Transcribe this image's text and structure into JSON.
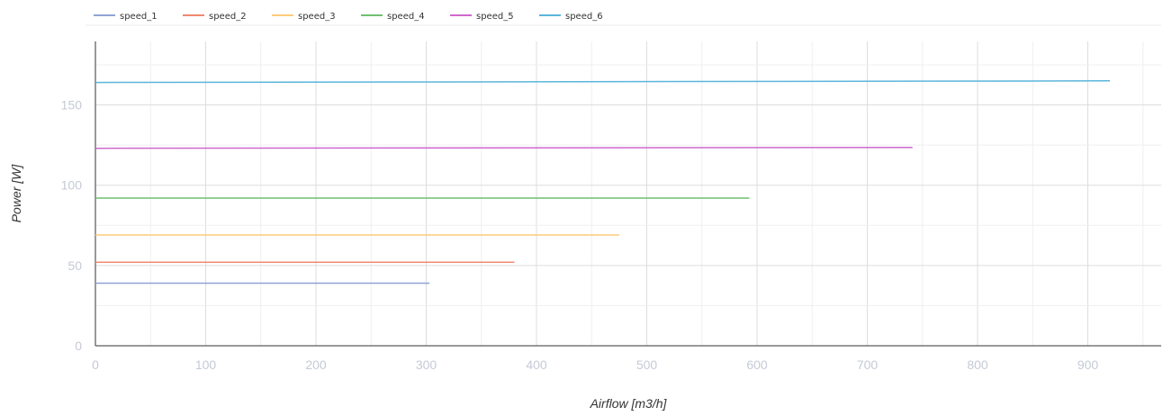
{
  "chart_data": {
    "type": "line",
    "xlabel": "Airflow [m3/h]",
    "ylabel": "Power [W]",
    "xlim": [
      0,
      960
    ],
    "ylim": [
      0,
      190
    ],
    "x_ticks": [
      0,
      100,
      200,
      300,
      400,
      500,
      600,
      700,
      800,
      900
    ],
    "y_ticks": [
      0,
      50,
      100,
      150
    ],
    "grid": true,
    "legend_position": "top-left",
    "series": [
      {
        "name": "speed_1",
        "color": "#8fa3d6",
        "x": [
          0,
          303
        ],
        "y": [
          39,
          39
        ]
      },
      {
        "name": "speed_2",
        "color": "#ef8a70",
        "x": [
          0,
          380
        ],
        "y": [
          52,
          52
        ]
      },
      {
        "name": "speed_3",
        "color": "#fcca7c",
        "x": [
          0,
          475
        ],
        "y": [
          69,
          69
        ]
      },
      {
        "name": "speed_4",
        "color": "#6fbf6f",
        "x": [
          0,
          593
        ],
        "y": [
          92,
          92
        ]
      },
      {
        "name": "speed_5",
        "color": "#cf68cf",
        "x": [
          0,
          741
        ],
        "y": [
          123,
          123.5
        ]
      },
      {
        "name": "speed_6",
        "color": "#5bb5dc",
        "x": [
          0,
          920
        ],
        "y": [
          164,
          165
        ]
      }
    ]
  }
}
